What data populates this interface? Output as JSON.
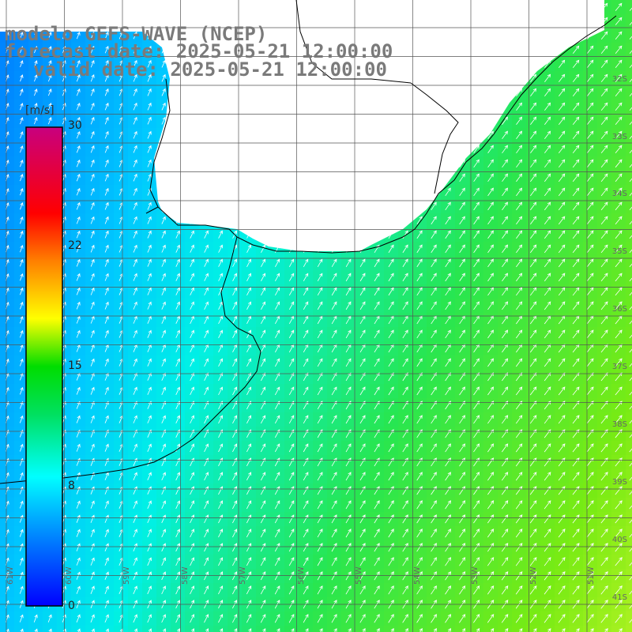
{
  "title": {
    "line1": "modelo GEFS-WAVE (NCEP)",
    "line2": "forecast date: 2025-05-21 12:00:00",
    "line3": "valid date: 2025-05-21 12:00:00"
  },
  "colorbar": {
    "unit": "[m/s]",
    "ticks": [
      "30",
      "22",
      "15",
      "8",
      "0"
    ],
    "colors": [
      "#c8007f",
      "#ff0000",
      "#ff7f00",
      "#ffff00",
      "#00e000",
      "#00ffff",
      "#0080ff",
      "#0000ff"
    ]
  },
  "lat_labels": [
    "32S",
    "33S",
    "34S",
    "35S",
    "36S",
    "37S",
    "38S",
    "39S",
    "40S",
    "41S"
  ],
  "lon_labels": [
    "61W",
    "60W",
    "59W",
    "58W",
    "57W",
    "56W",
    "55W",
    "54W",
    "53W",
    "52W",
    "51W"
  ],
  "colors": {
    "land": "#ffffff",
    "coast": "#000000",
    "grid": "#555555",
    "arrow": "#ffffff",
    "title": "#7a7a7a"
  },
  "icons": [
    "wind-arrow-icon"
  ]
}
